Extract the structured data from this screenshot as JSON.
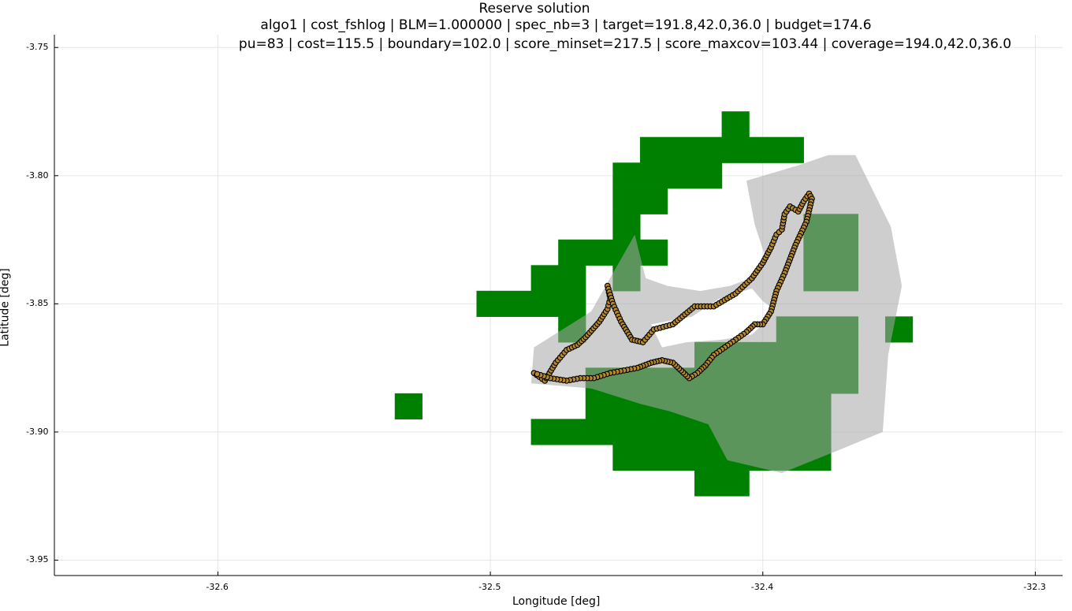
{
  "header": {
    "title_line1": "Reserve solution",
    "title_line2": "algo1 | cost_fshlog | BLM=1.000000 | spec_nb=3 | target=191.8,42.0,36.0 | budget=174.6",
    "title_line3": "pu=83 | cost=115.5 | boundary=102.0 | score_minset=217.5 | score_maxcov=103.44 | coverage=194.0,42.0,36.0"
  },
  "colors": {
    "planning_unit": "#008000",
    "region_fill": "#a6a6a6",
    "point_fill": "#b8892b",
    "point_edge": "#000000",
    "grid": "#e6e6e6",
    "axis": "#000000"
  },
  "chart_data": {
    "type": "scatter",
    "title": "Reserve solution",
    "xlabel": "Longitude [deg]",
    "ylabel": "Latitude [deg]",
    "xlim": [
      -32.66,
      -32.29
    ],
    "ylim": [
      -3.956,
      -3.745
    ],
    "xticks": [
      -32.6,
      -32.5,
      -32.4,
      -32.3
    ],
    "xtick_labels": [
      "-32.6",
      "-32.5",
      "-32.4",
      "-32.3"
    ],
    "yticks": [
      -3.75,
      -3.8,
      -3.85,
      -3.9,
      -3.95
    ],
    "ytick_labels": [
      "-3.75",
      "-3.80",
      "-3.85",
      "-3.90",
      "-3.95"
    ],
    "grid": true,
    "legend": false,
    "selected_planning_units": [
      [
        -32.415,
        -32.405,
        -3.785,
        -3.775
      ],
      [
        -32.445,
        -32.385,
        -3.795,
        -3.785
      ],
      [
        -32.455,
        -32.415,
        -3.805,
        -3.795
      ],
      [
        -32.455,
        -32.435,
        -3.815,
        -3.805
      ],
      [
        -32.455,
        -32.445,
        -3.825,
        -3.815
      ],
      [
        -32.475,
        -32.435,
        -3.835,
        -3.825
      ],
      [
        -32.455,
        -32.445,
        -3.845,
        -3.835
      ],
      [
        -32.485,
        -32.465,
        -3.845,
        -3.835
      ],
      [
        -32.505,
        -32.465,
        -3.855,
        -3.845
      ],
      [
        -32.475,
        -32.465,
        -3.865,
        -3.855
      ],
      [
        -32.385,
        -32.365,
        -3.845,
        -3.815
      ],
      [
        -32.355,
        -32.345,
        -3.865,
        -3.855
      ],
      [
        -32.395,
        -32.365,
        -3.865,
        -3.855
      ],
      [
        -32.425,
        -32.365,
        -3.875,
        -3.865
      ],
      [
        -32.465,
        -32.365,
        -3.885,
        -3.875
      ],
      [
        -32.465,
        -32.375,
        -3.895,
        -3.885
      ],
      [
        -32.485,
        -32.375,
        -3.905,
        -3.895
      ],
      [
        -32.455,
        -32.375,
        -3.915,
        -3.905
      ],
      [
        -32.425,
        -32.405,
        -3.925,
        -3.915
      ],
      [
        -32.535,
        -32.525,
        -3.895,
        -3.885
      ]
    ],
    "region_outline": [
      [
        -32.447,
        -3.823
      ],
      [
        -32.443,
        -3.84
      ],
      [
        -32.435,
        -3.843
      ],
      [
        -32.423,
        -3.845
      ],
      [
        -32.412,
        -3.843
      ],
      [
        -32.402,
        -3.839
      ],
      [
        -32.399,
        -3.832
      ],
      [
        -32.403,
        -3.819
      ],
      [
        -32.406,
        -3.802
      ],
      [
        -32.387,
        -3.796
      ],
      [
        -32.376,
        -3.792
      ],
      [
        -32.366,
        -3.792
      ],
      [
        -32.353,
        -3.82
      ],
      [
        -32.349,
        -3.843
      ],
      [
        -32.354,
        -3.87
      ],
      [
        -32.356,
        -3.9
      ],
      [
        -32.372,
        -3.907
      ],
      [
        -32.393,
        -3.916
      ],
      [
        -32.413,
        -3.911
      ],
      [
        -32.42,
        -3.897
      ],
      [
        -32.434,
        -3.892
      ],
      [
        -32.445,
        -3.889
      ],
      [
        -32.463,
        -3.883
      ],
      [
        -32.485,
        -3.881
      ],
      [
        -32.484,
        -3.867
      ],
      [
        -32.463,
        -3.853
      ]
    ],
    "region_hole": [
      [
        -32.441,
        -3.858
      ],
      [
        -32.426,
        -3.855
      ],
      [
        -32.416,
        -3.848
      ],
      [
        -32.404,
        -3.844
      ],
      [
        -32.4,
        -3.849
      ],
      [
        -32.396,
        -3.852
      ],
      [
        -32.398,
        -3.856
      ],
      [
        -32.404,
        -3.862
      ],
      [
        -32.415,
        -3.864
      ],
      [
        -32.428,
        -3.865
      ],
      [
        -32.437,
        -3.867
      ]
    ],
    "series": [
      {
        "type": "track",
        "x": [
          -32.484,
          -32.48,
          -32.476,
          -32.472,
          -32.468,
          -32.465,
          -32.46,
          -32.457,
          -32.456,
          -32.457,
          -32.455,
          -32.452,
          -32.448,
          -32.444,
          -32.44,
          -32.433,
          -32.425,
          -32.418,
          -32.41,
          -32.404,
          -32.4,
          -32.397,
          -32.395,
          -32.393,
          -32.392,
          -32.39,
          -32.387,
          -32.385,
          -32.383,
          -32.382,
          -32.384,
          -32.388,
          -32.392,
          -32.395,
          -32.397,
          -32.4,
          -32.403,
          -32.406,
          -32.41,
          -32.414,
          -32.418,
          -32.421,
          -32.424,
          -32.427,
          -32.43,
          -32.433,
          -32.437,
          -32.441,
          -32.446,
          -32.451,
          -32.456,
          -32.462,
          -32.467,
          -32.472,
          -32.478,
          -32.484
        ],
        "y": [
          -3.877,
          -3.88,
          -3.873,
          -3.868,
          -3.866,
          -3.863,
          -3.857,
          -3.852,
          -3.848,
          -3.843,
          -3.85,
          -3.857,
          -3.864,
          -3.865,
          -3.86,
          -3.858,
          -3.851,
          -3.851,
          -3.846,
          -3.84,
          -3.834,
          -3.828,
          -3.823,
          -3.821,
          -3.815,
          -3.812,
          -3.814,
          -3.81,
          -3.807,
          -3.809,
          -3.818,
          -3.827,
          -3.838,
          -3.845,
          -3.853,
          -3.858,
          -3.858,
          -3.861,
          -3.864,
          -3.867,
          -3.87,
          -3.874,
          -3.877,
          -3.879,
          -3.876,
          -3.873,
          -3.872,
          -3.873,
          -3.875,
          -3.876,
          -3.877,
          -3.879,
          -3.879,
          -3.88,
          -3.879,
          -3.877
        ]
      }
    ]
  }
}
